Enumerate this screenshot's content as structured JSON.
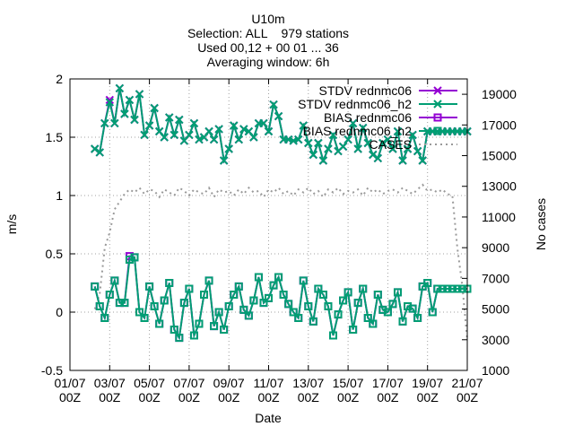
{
  "header": {
    "line1": "U10m",
    "line2": "Selection: ALL    979 stations",
    "line3": "Used 00,12 + 00 01 ... 36",
    "line4": "Averaging window:  6h"
  },
  "chart_data": {
    "type": "line",
    "title": "U10m",
    "xlabel": "Date",
    "ylabel": "m/s",
    "y2label": "No cases",
    "xlim": [
      0,
      20
    ],
    "ylim": [
      -0.5,
      2
    ],
    "y2lim": [
      1000,
      20000
    ],
    "x_ticks": [
      {
        "x": 0,
        "l1": "01/07",
        "l2": "00Z"
      },
      {
        "x": 2,
        "l1": "03/07",
        "l2": "00Z"
      },
      {
        "x": 4,
        "l1": "05/07",
        "l2": "00Z"
      },
      {
        "x": 6,
        "l1": "07/07",
        "l2": "00Z"
      },
      {
        "x": 8,
        "l1": "09/07",
        "l2": "00Z"
      },
      {
        "x": 10,
        "l1": "11/07",
        "l2": "00Z"
      },
      {
        "x": 12,
        "l1": "13/07",
        "l2": "00Z"
      },
      {
        "x": 14,
        "l1": "15/07",
        "l2": "00Z"
      },
      {
        "x": 16,
        "l1": "17/07",
        "l2": "00Z"
      },
      {
        "x": 18,
        "l1": "19/07",
        "l2": "00Z"
      },
      {
        "x": 20,
        "l1": "21/07",
        "l2": "00Z"
      }
    ],
    "y_ticks": [
      "-0.5",
      "0",
      "0.5",
      "1",
      "1.5",
      "2"
    ],
    "y_tick_values": [
      -0.5,
      0,
      0.5,
      1,
      1.5,
      2
    ],
    "y2_ticks": [
      "1000",
      "3000",
      "5000",
      "7000",
      "9000",
      "11000",
      "13000",
      "15000",
      "17000",
      "19000"
    ],
    "y2_tick_values": [
      1000,
      3000,
      5000,
      7000,
      9000,
      11000,
      13000,
      15000,
      17000,
      19000
    ],
    "grid": true,
    "legend_position": "top-right",
    "x": [
      1.25,
      1.5,
      1.75,
      2.0,
      2.25,
      2.5,
      2.75,
      3.0,
      3.25,
      3.5,
      3.75,
      4.0,
      4.25,
      4.5,
      4.75,
      5.0,
      5.25,
      5.5,
      5.75,
      6.0,
      6.25,
      6.5,
      6.75,
      7.0,
      7.25,
      7.5,
      7.75,
      8.0,
      8.25,
      8.5,
      8.75,
      9.0,
      9.25,
      9.5,
      9.75,
      10.0,
      10.25,
      10.5,
      10.75,
      11.0,
      11.25,
      11.5,
      11.75,
      12.0,
      12.25,
      12.5,
      12.75,
      13.0,
      13.25,
      13.5,
      13.75,
      14.0,
      14.25,
      14.5,
      14.75,
      15.0,
      15.25,
      15.5,
      15.75,
      16.0,
      16.25,
      16.5,
      16.75,
      17.0,
      17.25,
      17.5,
      17.75,
      18.0,
      18.25,
      18.5,
      18.75,
      19.0,
      19.25,
      19.5,
      19.75,
      20.0
    ],
    "series": [
      {
        "name": "STDV rednmc06",
        "color": "#9400d3",
        "marker": "x",
        "values": [
          1.4,
          1.37,
          1.62,
          1.82,
          1.62,
          1.92,
          1.7,
          1.82,
          1.65,
          1.87,
          1.52,
          1.6,
          1.75,
          1.55,
          1.5,
          1.67,
          1.52,
          1.65,
          1.47,
          1.52,
          1.62,
          1.48,
          1.5,
          1.55,
          1.48,
          1.57,
          1.3,
          1.4,
          1.6,
          1.48,
          1.57,
          1.55,
          1.5,
          1.62,
          1.62,
          1.55,
          1.78,
          1.68,
          1.48,
          1.48,
          1.47,
          1.48,
          1.6,
          1.45,
          1.35,
          1.45,
          1.3,
          1.4,
          1.52,
          1.38,
          1.42,
          1.48,
          1.62,
          1.4,
          1.58,
          1.45,
          1.35,
          1.32,
          1.45,
          1.48,
          1.4,
          1.55,
          1.3,
          1.4,
          1.52,
          1.38,
          1.3,
          1.55,
          1.55,
          1.55,
          1.55,
          1.55,
          1.55,
          1.55,
          1.55,
          1.55
        ]
      },
      {
        "name": "STDV rednmc06_h2",
        "color": "#009e73",
        "marker": "x",
        "values": [
          1.4,
          1.37,
          1.62,
          1.8,
          1.62,
          1.92,
          1.7,
          1.82,
          1.65,
          1.87,
          1.52,
          1.6,
          1.75,
          1.55,
          1.5,
          1.67,
          1.52,
          1.65,
          1.47,
          1.52,
          1.62,
          1.48,
          1.5,
          1.55,
          1.48,
          1.57,
          1.3,
          1.4,
          1.6,
          1.48,
          1.57,
          1.55,
          1.5,
          1.62,
          1.62,
          1.55,
          1.78,
          1.68,
          1.48,
          1.48,
          1.47,
          1.48,
          1.6,
          1.45,
          1.35,
          1.45,
          1.3,
          1.4,
          1.52,
          1.38,
          1.42,
          1.48,
          1.62,
          1.4,
          1.58,
          1.45,
          1.35,
          1.32,
          1.45,
          1.48,
          1.4,
          1.55,
          1.3,
          1.4,
          1.52,
          1.38,
          1.3,
          1.55,
          1.55,
          1.55,
          1.55,
          1.55,
          1.55,
          1.55,
          1.55,
          1.55
        ]
      },
      {
        "name": "BIAS rednmc06",
        "color": "#9400d3",
        "marker": "square",
        "values": [
          0.22,
          0.05,
          -0.05,
          0.15,
          0.27,
          0.08,
          0.08,
          0.48,
          0.47,
          0.0,
          -0.05,
          0.22,
          0.05,
          -0.1,
          0.1,
          0.25,
          -0.15,
          -0.22,
          0.08,
          0.2,
          -0.2,
          -0.1,
          0.15,
          0.27,
          -0.12,
          0.0,
          -0.15,
          0.05,
          0.15,
          0.22,
          0.02,
          -0.03,
          0.1,
          0.3,
          0.08,
          0.12,
          0.23,
          0.3,
          0.15,
          0.07,
          0.0,
          -0.05,
          0.27,
          0.05,
          -0.08,
          0.2,
          0.15,
          0.05,
          -0.2,
          -0.02,
          0.1,
          0.17,
          -0.15,
          0.08,
          0.2,
          -0.05,
          -0.1,
          0.15,
          0.02,
          0.0,
          0.07,
          0.17,
          -0.08,
          0.05,
          0.03,
          -0.05,
          0.22,
          0.25,
          0.0,
          0.2,
          0.2,
          0.2,
          0.2,
          0.2,
          0.2,
          0.2
        ]
      },
      {
        "name": "BIAS rednmc06_h2",
        "color": "#009e73",
        "marker": "square",
        "values": [
          0.22,
          0.05,
          -0.05,
          0.15,
          0.27,
          0.08,
          0.08,
          0.45,
          0.47,
          0.0,
          -0.05,
          0.22,
          0.05,
          -0.1,
          0.1,
          0.25,
          -0.15,
          -0.22,
          0.08,
          0.2,
          -0.2,
          -0.1,
          0.15,
          0.27,
          -0.12,
          0.0,
          -0.15,
          0.05,
          0.15,
          0.22,
          0.02,
          -0.03,
          0.1,
          0.3,
          0.08,
          0.12,
          0.23,
          0.3,
          0.15,
          0.07,
          0.0,
          -0.05,
          0.27,
          0.05,
          -0.08,
          0.2,
          0.15,
          0.05,
          -0.2,
          -0.02,
          0.1,
          0.17,
          -0.15,
          0.08,
          0.2,
          -0.05,
          -0.1,
          0.15,
          0.02,
          0.0,
          0.07,
          0.17,
          -0.08,
          0.05,
          0.03,
          -0.05,
          0.22,
          0.25,
          0.0,
          0.2,
          0.2,
          0.2,
          0.2,
          0.2,
          0.2,
          0.2
        ]
      }
    ],
    "cases": {
      "name": "CASES",
      "color": "#999999",
      "axis": "y2",
      "x": [
        1.25,
        1.5,
        1.75,
        2.0,
        2.25,
        2.5,
        2.75,
        3.0,
        3.25,
        3.5,
        3.75,
        4.0,
        4.25,
        4.5,
        4.75,
        5.0,
        5.25,
        5.5,
        5.75,
        6.0,
        6.25,
        6.5,
        6.75,
        7.0,
        7.25,
        7.5,
        7.75,
        8.0,
        8.25,
        8.5,
        8.75,
        9.0,
        9.25,
        9.5,
        9.75,
        10.0,
        10.25,
        10.5,
        10.75,
        11.0,
        11.25,
        11.5,
        11.75,
        12.0,
        12.25,
        12.5,
        12.75,
        13.0,
        13.25,
        13.5,
        13.75,
        14.0,
        14.25,
        14.5,
        14.75,
        15.0,
        15.25,
        15.5,
        15.75,
        16.0,
        16.25,
        16.5,
        16.75,
        17.0,
        17.25,
        17.5,
        17.75,
        18.0,
        18.25,
        18.5,
        18.75,
        19.0,
        19.25,
        19.5,
        19.75,
        20.0
      ],
      "values": [
        5000,
        6000,
        9000,
        10000,
        11500,
        12000,
        12500,
        12800,
        12600,
        12900,
        12500,
        12800,
        12700,
        12300,
        12800,
        12600,
        12400,
        12900,
        12700,
        12400,
        12800,
        12600,
        12500,
        12900,
        12300,
        12800,
        12600,
        12700,
        12400,
        12800,
        12500,
        12900,
        12600,
        12700,
        12300,
        12800,
        12600,
        12900,
        12500,
        12700,
        12400,
        12800,
        12600,
        12900,
        12500,
        12700,
        12300,
        12800,
        12600,
        12900,
        12500,
        12700,
        12600,
        12800,
        12400,
        12900,
        12600,
        12800,
        12500,
        12700,
        12800,
        12600,
        12900,
        12700,
        12500,
        12800,
        13100,
        12700,
        12800,
        12600,
        12800,
        12500,
        12400,
        9000,
        6500,
        3000
      ]
    }
  }
}
